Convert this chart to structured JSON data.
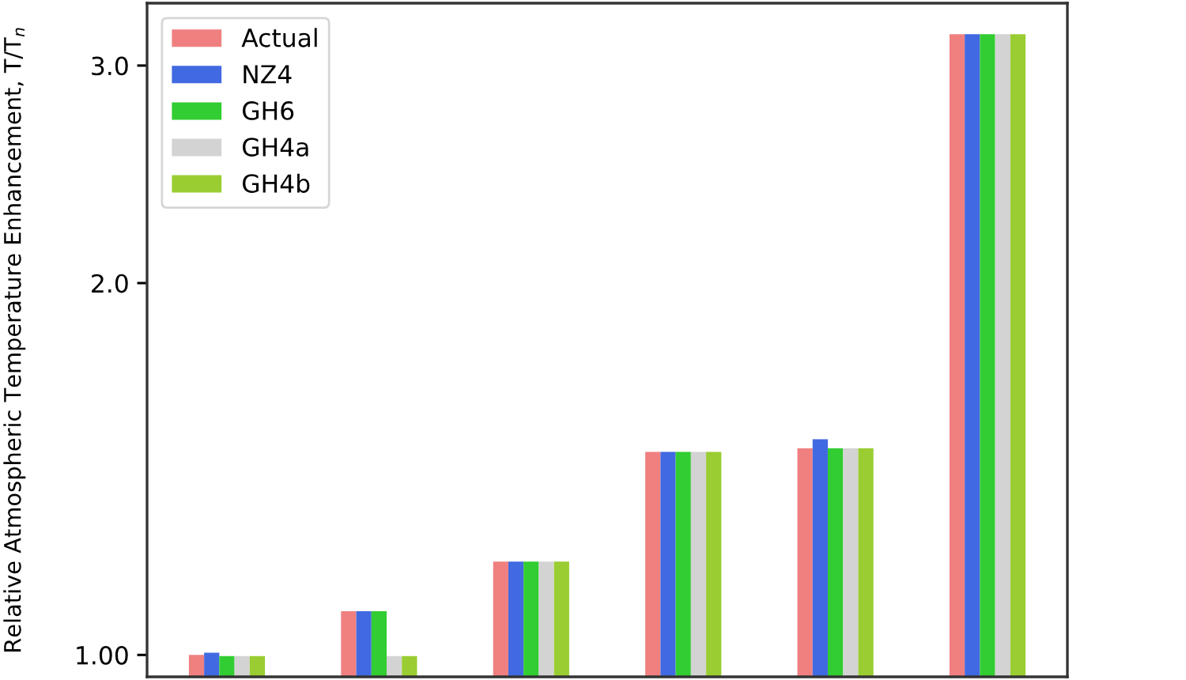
{
  "chart_data": {
    "type": "bar",
    "ylabel": "Relative Atmospheric Temperature Enhancement, T/T$_{n}$",
    "categories": [
      null,
      null,
      null,
      null,
      null,
      null
    ],
    "series": [
      {
        "name": "Actual",
        "color": "#f08080",
        "values": [
          1.0,
          1.085,
          1.19,
          1.46,
          1.47,
          3.18
        ]
      },
      {
        "name": "NZ4",
        "color": "#4169e1",
        "values": [
          1.004,
          1.085,
          1.19,
          1.46,
          1.495,
          3.18
        ]
      },
      {
        "name": "GH6",
        "color": "#32cd32",
        "values": [
          0.998,
          1.085,
          1.19,
          1.46,
          1.47,
          3.18
        ]
      },
      {
        "name": "GH4a",
        "color": "#d3d3d3",
        "values": [
          0.998,
          0.998,
          1.19,
          1.46,
          1.47,
          3.18
        ]
      },
      {
        "name": "GH4b",
        "color": "#9acd32",
        "values": [
          0.998,
          0.998,
          1.19,
          1.46,
          1.47,
          3.18
        ]
      }
    ],
    "log": true,
    "ylim": [
      0.96,
      3.37
    ],
    "yticks": [
      {
        "value": 1,
        "label": "1.00"
      },
      {
        "value": 2,
        "label": "2.0"
      },
      {
        "value": 3,
        "label": "3.0"
      }
    ],
    "legend": "top left",
    "grid": false
  }
}
